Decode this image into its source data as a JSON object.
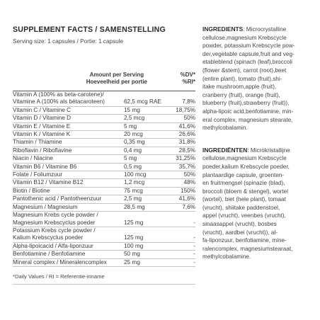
{
  "header": {
    "title": "SUPPLEMENT FACTS / SAMENSTELLING",
    "serving": "Serving size: 1 capsules / Portie: 1 capsule"
  },
  "table": {
    "col_amount": [
      "Amount per Serving",
      "Hoeveelheid per portie"
    ],
    "col_dv": [
      "%DV*",
      "%RI*"
    ],
    "rows": [
      {
        "name": [
          "Vitamin A (100% as beta-carotene)/",
          "Vitamine A (100% als bètacaroteen)"
        ],
        "amount": "62,5 mcg RAE",
        "pct": "7,8%"
      },
      {
        "name": [
          "Vitamin C / Vitamine C"
        ],
        "amount": "15 mg",
        "pct": "18,75%"
      },
      {
        "name": [
          "Vitamin D / Vitamine D"
        ],
        "amount": "2,5 mcg",
        "pct": "50%"
      },
      {
        "name": [
          "Vitamin E / Vitamine E"
        ],
        "amount": "5 mg",
        "pct": "41,6%"
      },
      {
        "name": [
          "Vitamin K / Vitamine K"
        ],
        "amount": "20 mcg",
        "pct": "26,6%"
      },
      {
        "name": [
          "Thiamin / Thiamine"
        ],
        "amount": "0,35 mg",
        "pct": "31,8%"
      },
      {
        "name": [
          "Riboflavin / Riboflavine"
        ],
        "amount": "0,4 mg",
        "pct": "28,5%"
      },
      {
        "name": [
          "Niacin / Niacine"
        ],
        "amount": "5 mg",
        "pct": "31,25%"
      },
      {
        "name": [
          "Vitamin B6 / Vitamine B6"
        ],
        "amount": "0,5 mg",
        "pct": "35,7%"
      },
      {
        "name": [
          "Folate / Foliumzuur"
        ],
        "amount": "100 mcg",
        "pct": "50%"
      },
      {
        "name": [
          "Vitamin B12 / Vitamine B12"
        ],
        "amount": "1,2 mcg",
        "pct": "48%"
      },
      {
        "name": [
          "Biotin / Biotine"
        ],
        "amount": "75 mcg",
        "pct": "150%"
      },
      {
        "name": [
          "Pantothenic acid / Pantotheenzuur"
        ],
        "amount": "2,5 mg",
        "pct": "41,6%"
      },
      {
        "name": [
          "Magnesium / Magnesium"
        ],
        "amount": "28,5 mg",
        "pct": "7,6%"
      },
      {
        "name": [
          "Magnesium Krebs cycle powder /",
          "Magnesium Krebscyclus poeder"
        ],
        "amount": "125 mg",
        "pct": "-"
      },
      {
        "name": [
          "Potassium Krebs cycle powder /",
          "Kalium Krebscyclus poeder"
        ],
        "amount": "125 mg",
        "pct": "-"
      },
      {
        "name": [
          "Alpha-lipoicacid / Alfa-liponzuur"
        ],
        "amount": "100 mg",
        "pct": "-"
      },
      {
        "name": [
          "Benfotiamine / Benfotiamine"
        ],
        "amount": "50 mg",
        "pct": "-"
      },
      {
        "name": [
          "Mineral complex / Mineralencomplex"
        ],
        "amount": "25 mg",
        "pct": "-"
      }
    ],
    "footnote": "*Daily Values / RI = Referentie-inname"
  },
  "ingredients": {
    "en_label": "INGREDIENTS",
    "en_lines": [
      ": Microcrystalline",
      "cellulose,magnesium Krebscycle",
      "powder, potassium Krebscycle pow-",
      "der,vegetable capsule,fruit and veg-",
      "etableblend (spinach (leaf),broccoli",
      "(flower &stem), carrot (root),beet",
      "(entire plant), tomato (fruit),shi-",
      "itake mushroom,apple (fruit),",
      "cranberry (fruit), orange (fruit),",
      "blueberry (fruit),strawberry (fruit)),",
      "alpha-lipoic acid,benfotiamine, min-",
      "eral complex, magnesium stearate,",
      "methylcobalamin."
    ],
    "nl_label": "INGREDIËNTEN",
    "nl_lines": [
      ": Microkristallijne",
      "cellulose,magnesium Krebscycle",
      "poeder,kalium Krebscycle poeder,",
      "plantaardige capsule, groenten-",
      "en fruitmengsel (spinazie (blad),",
      "broccoli (bloem & stengel), wortel",
      "(wortel), biet (hele plant), tomaat",
      "(vrucht), shiitake paddenstoel,",
      "appel (vrucht), veenbes (vrucht),",
      "sinaasappel (vrucht), bosbes",
      "(vrucht), aardbei (vrucht)), al-",
      "fa-liponzuur, benfotiamine, mine-",
      "ralencomplex, magnesiumstearaat,",
      "methylcobalamine."
    ]
  }
}
